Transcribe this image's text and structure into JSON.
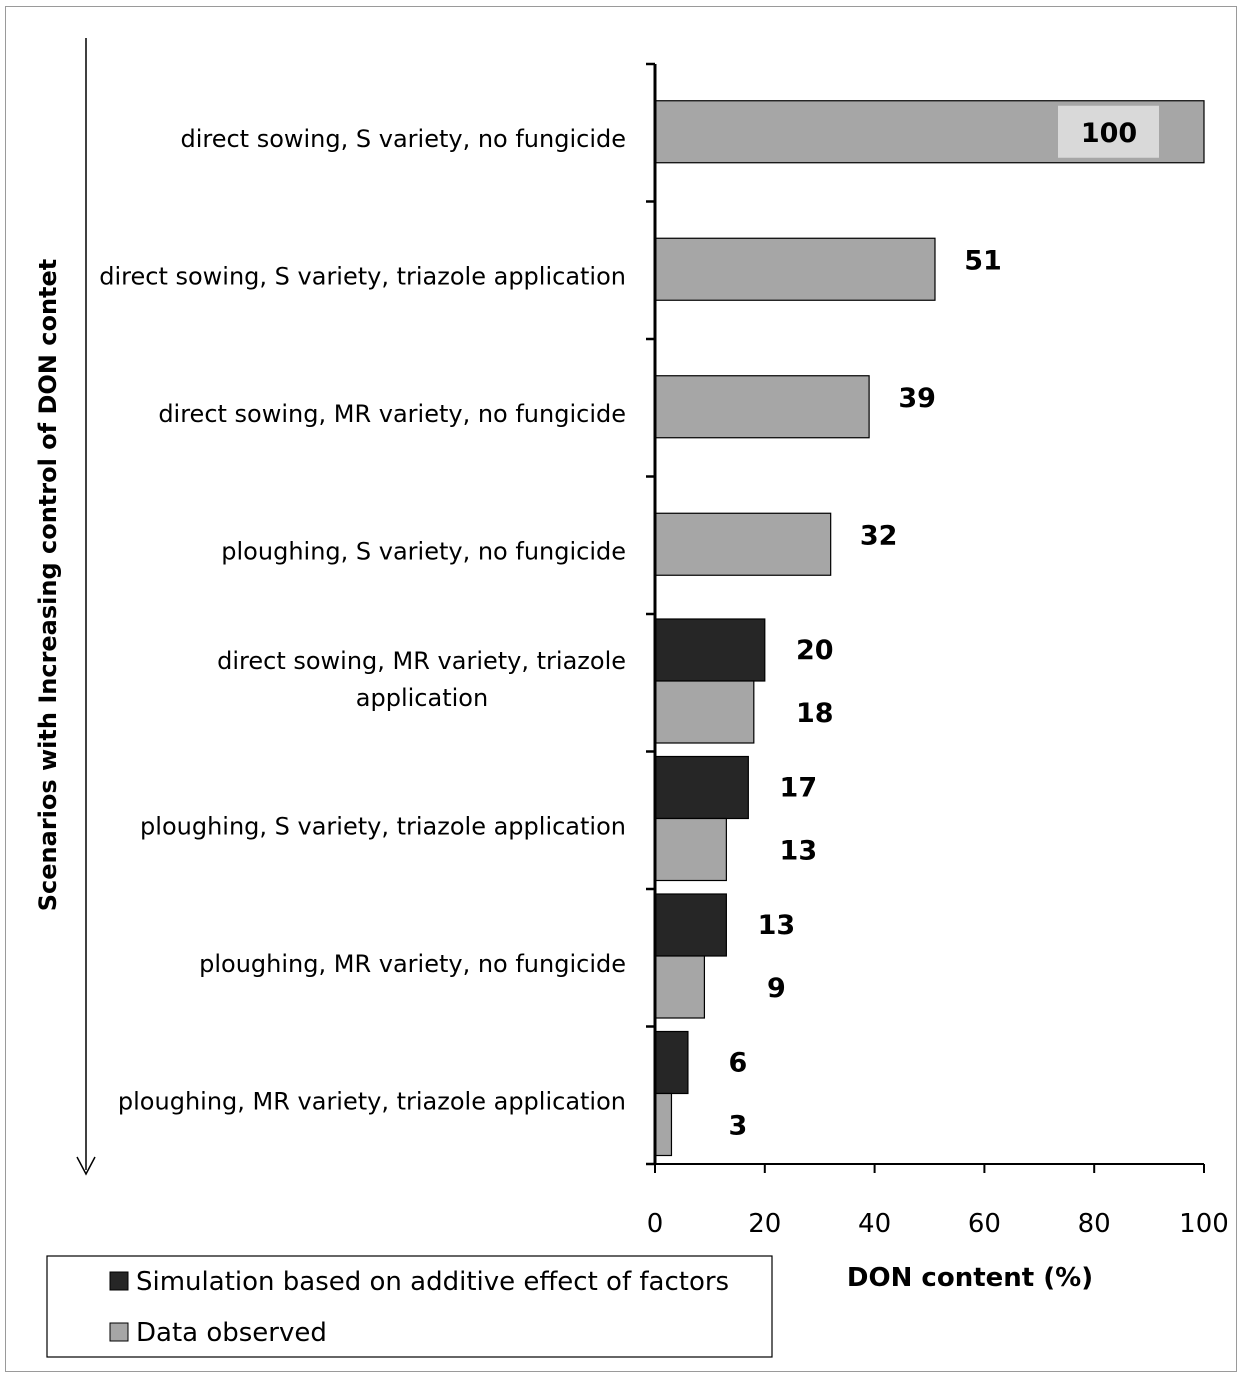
{
  "chart_data": {
    "type": "bar",
    "orientation": "horizontal",
    "categories": [
      [
        "direct sowing, S variety, no fungicide"
      ],
      [
        "direct sowing, S variety, triazole application"
      ],
      [
        "direct sowing, MR variety, no fungicide"
      ],
      [
        "ploughing, S variety, no fungicide"
      ],
      [
        "direct sowing, MR variety, triazole",
        "application"
      ],
      [
        "ploughing, S variety, triazole application"
      ],
      [
        "ploughing, MR variety, no fungicide"
      ],
      [
        "ploughing, MR variety, triazole application"
      ]
    ],
    "series": [
      {
        "name": "Simulation based on additive effect of factors",
        "color": "#262626",
        "values": [
          null,
          null,
          null,
          null,
          20,
          17,
          13,
          6
        ],
        "labels": [
          "",
          "",
          "",
          "",
          "20",
          "17",
          "13",
          "6"
        ]
      },
      {
        "name": "Data observed",
        "color": "#a6a6a6",
        "values": [
          100,
          51,
          39,
          32,
          18,
          13,
          9,
          3
        ],
        "labels": [
          "100",
          "51",
          "39",
          "32",
          "18",
          "13",
          "9",
          "3"
        ]
      }
    ],
    "xlabel": "DON content (%)",
    "ylabel": "Scenarios with Increasing control of DON contet",
    "xlim": [
      0,
      100
    ],
    "xticks": [
      "0",
      "20",
      "40",
      "60",
      "80",
      "100"
    ],
    "grid": false,
    "legend_position": "bottom-left"
  }
}
